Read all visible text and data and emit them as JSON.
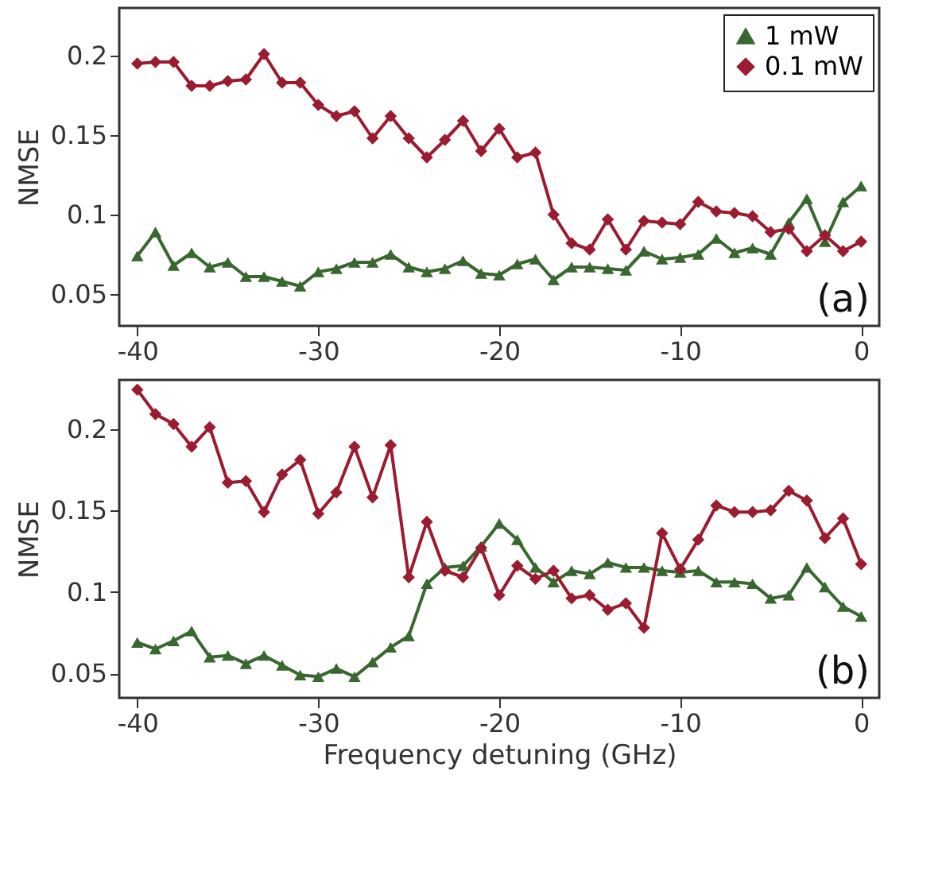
{
  "chart_data": [
    {
      "type": "line",
      "ylabel": "NMSE",
      "annotations": [
        "(a)"
      ],
      "xlim": [
        -41,
        1
      ],
      "ylim": [
        0.03,
        0.23
      ],
      "xticks": [
        -40,
        -30,
        -20,
        -10,
        0
      ],
      "yticks": [
        0.05,
        0.1,
        0.15,
        0.2
      ],
      "grid": false,
      "legend": "top right",
      "x": [
        -40,
        -39,
        -38,
        -37,
        -36,
        -35,
        -34,
        -33,
        -32,
        -31,
        -30,
        -29,
        -28,
        -27,
        -26,
        -25,
        -24,
        -23,
        -22,
        -21,
        -20,
        -19,
        -18,
        -17,
        -16,
        -15,
        -14,
        -13,
        -12,
        -11,
        -10,
        -9,
        -8,
        -7,
        -6,
        -5,
        -4,
        -3,
        -2,
        -1,
        0
      ],
      "series": [
        {
          "name": "1 mW",
          "color": "#38672f",
          "marker": "triangle",
          "values": [
            0.074,
            0.089,
            0.068,
            0.076,
            0.067,
            0.07,
            0.061,
            0.061,
            0.058,
            0.055,
            0.064,
            0.066,
            0.07,
            0.07,
            0.075,
            0.067,
            0.064,
            0.066,
            0.071,
            0.063,
            0.062,
            0.069,
            0.072,
            0.059,
            0.067,
            0.067,
            0.066,
            0.065,
            0.077,
            0.072,
            0.073,
            0.075,
            0.085,
            0.076,
            0.079,
            0.075,
            0.095,
            0.11,
            0.083,
            0.108,
            0.118
          ]
        },
        {
          "name": "0.1 mW",
          "color": "#9b1b30",
          "marker": "diamond",
          "values": [
            0.195,
            0.196,
            0.196,
            0.181,
            0.181,
            0.184,
            0.185,
            0.201,
            0.183,
            0.183,
            0.169,
            0.162,
            0.165,
            0.148,
            0.162,
            0.148,
            0.136,
            0.147,
            0.159,
            0.14,
            0.154,
            0.136,
            0.139,
            0.1,
            0.082,
            0.078,
            0.097,
            0.078,
            0.096,
            0.095,
            0.094,
            0.108,
            0.102,
            0.101,
            0.099,
            0.089,
            0.091,
            0.077,
            0.087,
            0.077,
            0.083
          ]
        }
      ]
    },
    {
      "type": "line",
      "xlabel": "Frequency detuning (GHz)",
      "ylabel": "NMSE",
      "annotations": [
        "(b)"
      ],
      "xlim": [
        -41,
        1
      ],
      "ylim": [
        0.035,
        0.23
      ],
      "xticks": [
        -40,
        -30,
        -20,
        -10,
        0
      ],
      "yticks": [
        0.05,
        0.1,
        0.15,
        0.2
      ],
      "grid": false,
      "legend": "top right",
      "x": [
        -40,
        -39,
        -38,
        -37,
        -36,
        -35,
        -34,
        -33,
        -32,
        -31,
        -30,
        -29,
        -28,
        -27,
        -26,
        -25,
        -24,
        -23,
        -22,
        -21,
        -20,
        -19,
        -18,
        -17,
        -16,
        -15,
        -14,
        -13,
        -12,
        -11,
        -10,
        -9,
        -8,
        -7,
        -6,
        -5,
        -4,
        -3,
        -2,
        -1,
        0
      ],
      "series": [
        {
          "name": "1 mW",
          "color": "#38672f",
          "marker": "triangle",
          "values": [
            0.069,
            0.065,
            0.07,
            0.076,
            0.06,
            0.061,
            0.056,
            0.061,
            0.055,
            0.049,
            0.048,
            0.053,
            0.048,
            0.057,
            0.066,
            0.073,
            0.105,
            0.115,
            0.116,
            0.128,
            0.142,
            0.132,
            0.115,
            0.106,
            0.113,
            0.111,
            0.118,
            0.115,
            0.115,
            0.113,
            0.112,
            0.113,
            0.106,
            0.106,
            0.105,
            0.096,
            0.098,
            0.115,
            0.103,
            0.091,
            0.085
          ]
        },
        {
          "name": "0.1 mW",
          "color": "#9b1b30",
          "marker": "diamond",
          "values": [
            0.224,
            0.209,
            0.203,
            0.189,
            0.201,
            0.167,
            0.168,
            0.149,
            0.172,
            0.181,
            0.148,
            0.161,
            0.189,
            0.158,
            0.19,
            0.109,
            0.143,
            0.113,
            0.109,
            0.127,
            0.098,
            0.116,
            0.108,
            0.113,
            0.096,
            0.098,
            0.089,
            0.093,
            0.078,
            0.136,
            0.114,
            0.132,
            0.153,
            0.149,
            0.149,
            0.15,
            0.162,
            0.156,
            0.133,
            0.145,
            0.117
          ]
        }
      ]
    }
  ]
}
